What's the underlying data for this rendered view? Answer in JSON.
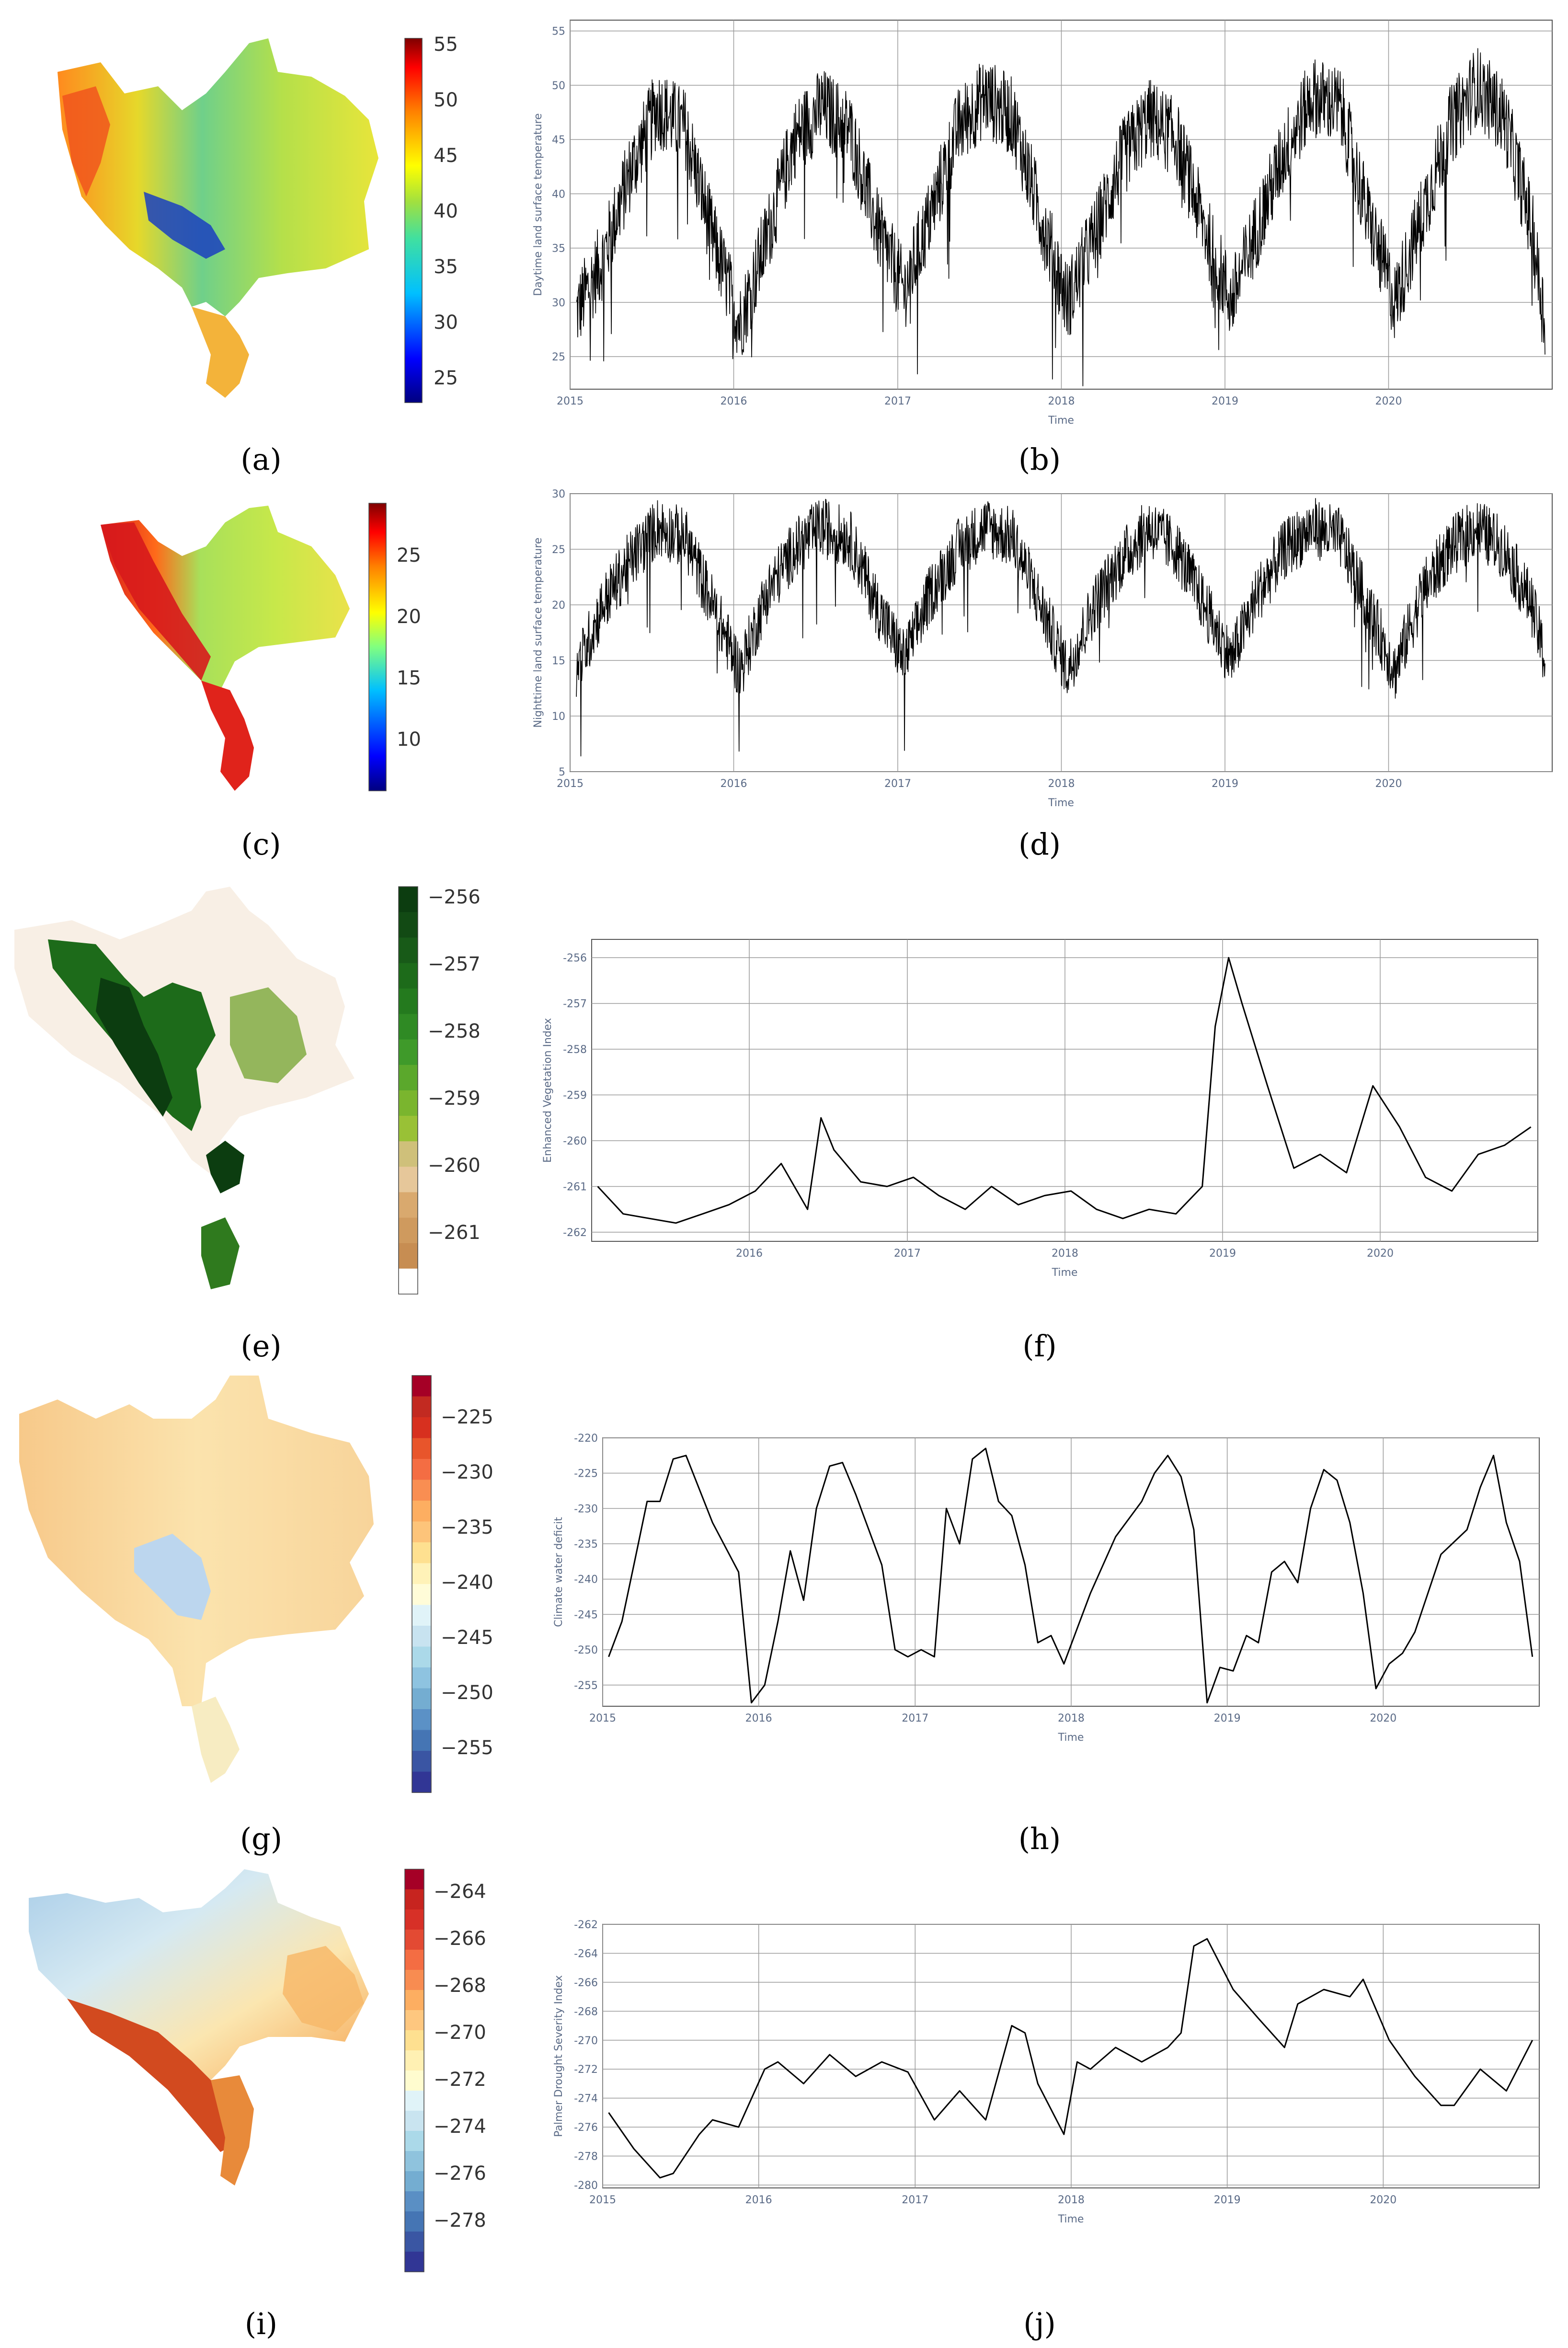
{
  "panel_labels": [
    "(a)",
    "(b)",
    "(c)",
    "(d)",
    "(e)",
    "(f)",
    "(g)",
    "(h)",
    "(i)",
    "(j)"
  ],
  "colorbars": [
    {
      "ticks": [
        "55",
        "50",
        "45",
        "40",
        "35",
        "30",
        "25"
      ]
    },
    {
      "ticks": [
        "25",
        "20",
        "15",
        "10"
      ]
    },
    {
      "ticks": [
        "−256",
        "−257",
        "−258",
        "−259",
        "−260",
        "−261"
      ]
    },
    {
      "ticks": [
        "−225",
        "−230",
        "−235",
        "−240",
        "−245",
        "−250",
        "−255"
      ]
    },
    {
      "ticks": [
        "−264",
        "−266",
        "−268",
        "−270",
        "−272",
        "−274",
        "−276",
        "−278"
      ]
    }
  ],
  "colors": {
    "line": "#000000",
    "grid": "#9a9a9a",
    "frame": "#555555",
    "map_green": "#a7d65a",
    "map_red": "#d7301f",
    "map_blue": "#2b4fb8",
    "map_dark_green": "#0c3d10"
  },
  "chart_data": [
    {
      "type": "line",
      "ylabel": "Daytime land surface temperature",
      "xlabel": "Time",
      "xlim": [
        "2015-01-01",
        "2020-12-31"
      ],
      "x_ticks": [
        "2015",
        "2016",
        "2017",
        "2018",
        "2019",
        "2020"
      ],
      "ylim": [
        22,
        56
      ],
      "y_ticks": [
        "25",
        "30",
        "35",
        "40",
        "45",
        "50",
        "55"
      ],
      "grid": true,
      "x": [
        "2015-01",
        "2015-03",
        "2015-05",
        "2015-07",
        "2015-09",
        "2015-11",
        "2016-01",
        "2016-03",
        "2016-05",
        "2016-07",
        "2016-09",
        "2016-11",
        "2017-01",
        "2017-03",
        "2017-05",
        "2017-07",
        "2017-09",
        "2017-11",
        "2018-01",
        "2018-03",
        "2018-05",
        "2018-07",
        "2018-09",
        "2018-11",
        "2019-01",
        "2019-03",
        "2019-05",
        "2019-07",
        "2019-09",
        "2019-11",
        "2020-01",
        "2020-03",
        "2020-05",
        "2020-07",
        "2020-09",
        "2020-11",
        "2020-12"
      ],
      "values": [
        29,
        34,
        42,
        48,
        46,
        36,
        28,
        36,
        45,
        48,
        46,
        37,
        31,
        38,
        46,
        49,
        47,
        38,
        30,
        36,
        43,
        47,
        45,
        37,
        30,
        37,
        44,
        49,
        48,
        38,
        30,
        38,
        46,
        50,
        47,
        37,
        28
      ]
    },
    {
      "type": "line",
      "ylabel": "Nighttime land surface temperature",
      "xlabel": "Time",
      "xlim": [
        "2015-01-01",
        "2020-12-31"
      ],
      "x_ticks": [
        "2015",
        "2016",
        "2017",
        "2018",
        "2019",
        "2020"
      ],
      "ylim": [
        5,
        30
      ],
      "y_ticks": [
        "5",
        "10",
        "15",
        "20",
        "25",
        "30"
      ],
      "grid": true,
      "x": [
        "2015-01",
        "2015-03",
        "2015-05",
        "2015-07",
        "2015-09",
        "2015-11",
        "2016-01",
        "2016-03",
        "2016-05",
        "2016-07",
        "2016-09",
        "2016-11",
        "2017-01",
        "2017-03",
        "2017-05",
        "2017-07",
        "2017-09",
        "2017-11",
        "2018-01",
        "2018-03",
        "2018-05",
        "2018-07",
        "2018-09",
        "2018-11",
        "2019-01",
        "2019-03",
        "2019-05",
        "2019-07",
        "2019-09",
        "2019-11",
        "2020-01",
        "2020-03",
        "2020-05",
        "2020-07",
        "2020-09",
        "2020-11",
        "2020-12"
      ],
      "values": [
        14,
        20,
        24,
        27,
        26,
        20,
        14,
        21,
        25,
        27,
        26,
        20,
        15,
        21,
        25,
        27,
        26,
        20,
        14,
        20,
        24,
        27,
        25,
        20,
        15,
        21,
        25,
        27,
        26,
        20,
        14,
        21,
        25,
        27,
        25,
        20,
        15
      ]
    },
    {
      "type": "line",
      "ylabel": "Enhanced Vegetation Index",
      "xlabel": "Time",
      "xlim": [
        "2015-01-01",
        "2020-12-31"
      ],
      "x_ticks": [
        "2016",
        "2017",
        "2018",
        "2019",
        "2020"
      ],
      "ylim": [
        -262.2,
        -255.6
      ],
      "y_ticks": [
        "-256",
        "-257",
        "-258",
        "-259",
        "-260",
        "-261",
        "-262"
      ],
      "grid": true,
      "x": [
        "2015-01",
        "2015-03",
        "2015-05",
        "2015-07",
        "2015-09",
        "2015-11",
        "2016-01",
        "2016-03",
        "2016-05",
        "2016-06",
        "2016-07",
        "2016-09",
        "2016-11",
        "2017-01",
        "2017-03",
        "2017-05",
        "2017-07",
        "2017-09",
        "2017-11",
        "2018-01",
        "2018-03",
        "2018-05",
        "2018-07",
        "2018-09",
        "2018-11",
        "2018-12",
        "2019-01",
        "2019-02",
        "2019-04",
        "2019-06",
        "2019-08",
        "2019-10",
        "2019-12",
        "2020-02",
        "2020-04",
        "2020-06",
        "2020-08",
        "2020-10",
        "2020-12"
      ],
      "values": [
        -261.0,
        -261.6,
        -261.7,
        -261.8,
        -261.6,
        -261.4,
        -261.1,
        -260.5,
        -261.5,
        -259.5,
        -260.2,
        -260.9,
        -261.0,
        -260.8,
        -261.2,
        -261.5,
        -261.0,
        -261.4,
        -261.2,
        -261.1,
        -261.5,
        -261.7,
        -261.5,
        -261.6,
        -261.0,
        -257.5,
        -256.0,
        -257.0,
        -258.8,
        -260.6,
        -260.3,
        -260.7,
        -258.8,
        -259.7,
        -260.8,
        -261.1,
        -260.3,
        -260.1,
        -259.7
      ]
    },
    {
      "type": "line",
      "ylabel": "Climate water deficit",
      "xlabel": "Time",
      "xlim": [
        "2015-01-01",
        "2020-12-31"
      ],
      "x_ticks": [
        "2015",
        "2016",
        "2017",
        "2018",
        "2019",
        "2020"
      ],
      "ylim": [
        -258,
        -220
      ],
      "y_ticks": [
        "-220",
        "-225",
        "-230",
        "-235",
        "-240",
        "-245",
        "-250",
        "-255"
      ],
      "grid": true,
      "x": [
        "2015-01",
        "2015-02",
        "2015-03",
        "2015-04",
        "2015-05",
        "2015-06",
        "2015-07",
        "2015-09",
        "2015-11",
        "2015-12",
        "2016-01",
        "2016-02",
        "2016-03",
        "2016-04",
        "2016-05",
        "2016-06",
        "2016-07",
        "2016-08",
        "2016-10",
        "2016-11",
        "2016-12",
        "2017-01",
        "2017-02",
        "2017-03",
        "2017-04",
        "2017-05",
        "2017-06",
        "2017-07",
        "2017-08",
        "2017-09",
        "2017-10",
        "2017-11",
        "2017-12",
        "2018-01",
        "2018-02",
        "2018-04",
        "2018-06",
        "2018-07",
        "2018-08",
        "2018-09",
        "2018-10",
        "2018-11",
        "2018-12",
        "2019-01",
        "2019-02",
        "2019-03",
        "2019-04",
        "2019-05",
        "2019-06",
        "2019-07",
        "2019-08",
        "2019-09",
        "2019-10",
        "2019-11",
        "2019-12",
        "2020-01",
        "2020-02",
        "2020-03",
        "2020-05",
        "2020-07",
        "2020-08",
        "2020-09",
        "2020-10",
        "2020-11",
        "2020-12"
      ],
      "values": [
        -251,
        -246,
        -238,
        -229,
        -229,
        -223,
        -222.5,
        -232,
        -239,
        -257.5,
        -255,
        -246,
        -236,
        -243,
        -230,
        -224,
        -223.5,
        -228,
        -238,
        -250,
        -251,
        -250,
        -251,
        -230,
        -235,
        -223,
        -221.5,
        -229,
        -231,
        -238,
        -249,
        -248,
        -252,
        -247,
        -242,
        -234,
        -229,
        -225,
        -222.5,
        -225.5,
        -233,
        -257.5,
        -252.5,
        -253,
        -248,
        -249,
        -239,
        -237.5,
        -240.5,
        -230,
        -224.5,
        -226,
        -232,
        -242,
        -255.5,
        -252,
        -250.5,
        -247.5,
        -236.5,
        -233,
        -227,
        -222.5,
        -232,
        -237.5,
        -251
      ]
    },
    {
      "type": "line",
      "ylabel": "Palmer Drought Severity Index",
      "xlabel": "Time",
      "xlim": [
        "2015-01-01",
        "2020-12-31"
      ],
      "x_ticks": [
        "2015",
        "2016",
        "2017",
        "2018",
        "2019",
        "2020"
      ],
      "ylim": [
        -280.2,
        -262
      ],
      "y_ticks": [
        "-262",
        "-264",
        "-266",
        "-268",
        "-270",
        "-272",
        "-274",
        "-276",
        "-278",
        "-280"
      ],
      "grid": true,
      "x": [
        "2015-01",
        "2015-03",
        "2015-05",
        "2015-06",
        "2015-08",
        "2015-09",
        "2015-11",
        "2016-01",
        "2016-02",
        "2016-04",
        "2016-06",
        "2016-08",
        "2016-10",
        "2016-12",
        "2017-02",
        "2017-04",
        "2017-06",
        "2017-08",
        "2017-09",
        "2017-10",
        "2017-12",
        "2018-01",
        "2018-02",
        "2018-04",
        "2018-06",
        "2018-08",
        "2018-09",
        "2018-10",
        "2018-11",
        "2019-01",
        "2019-03",
        "2019-05",
        "2019-06",
        "2019-08",
        "2019-10",
        "2019-11",
        "2020-01",
        "2020-03",
        "2020-05",
        "2020-06",
        "2020-08",
        "2020-10",
        "2020-12"
      ],
      "values": [
        -275,
        -277.5,
        -279.5,
        -279.2,
        -276.5,
        -275.5,
        -276,
        -272,
        -271.5,
        -273,
        -271,
        -272.5,
        -271.5,
        -272.2,
        -275.5,
        -273.5,
        -275.5,
        -269,
        -269.5,
        -273,
        -276.5,
        -271.5,
        -272,
        -270.5,
        -271.5,
        -270.5,
        -269.5,
        -263.5,
        -263,
        -266.5,
        -268.5,
        -270.5,
        -267.5,
        -266.5,
        -267,
        -265.8,
        -270,
        -272.5,
        -274.5,
        -274.5,
        -272,
        -273.5,
        -270
      ]
    }
  ]
}
